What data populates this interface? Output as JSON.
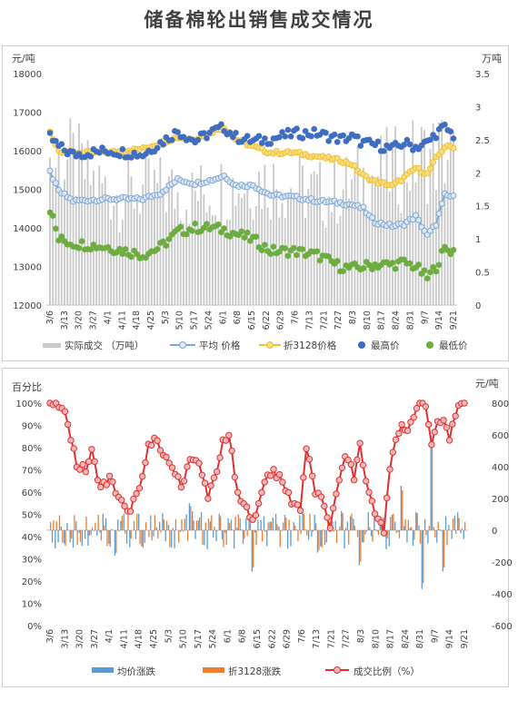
{
  "title": "储备棉轮出销售成交情况",
  "colors": {
    "volume": "#c8c8c8",
    "avg": "#7fa7d4",
    "avg_marker": "#dce8f4",
    "p3128": "#f2c230",
    "p3128_marker": "#f7dd82",
    "high": "#3f6dc2",
    "low": "#6cae3e",
    "avg_change": "#5b9bd5",
    "p3128_change": "#ed7d31",
    "ratio": "#e03030",
    "ratio_marker": "#f4b8b8"
  },
  "chart_data": [
    {
      "type": "bar+line",
      "y_left_label": "元/吨",
      "y_right_label": "万吨",
      "y_left_ticks": [
        "18000",
        "17000",
        "16000",
        "15000",
        "14000",
        "13000",
        "12000"
      ],
      "y_right_ticks": [
        "3.5",
        "3",
        "2.5",
        "2",
        "1.5",
        "1",
        "0.5",
        "0"
      ],
      "ylim_left": [
        12000,
        18000
      ],
      "ylim_right": [
        0,
        3.5
      ],
      "x_tick_labels": [
        "3/6",
        "3/13",
        "3/20",
        "3/27",
        "4/1",
        "4/11",
        "4/18",
        "4/25",
        "5/3",
        "5/10",
        "5/17",
        "5/24",
        "6/1",
        "6/8",
        "6/15",
        "6/22",
        "6/29",
        "7/6",
        "7/13",
        "7/21",
        "7/27",
        "8/3",
        "8/10",
        "8/17",
        "8/24",
        "8/31",
        "9/7",
        "9/14",
        "9/21"
      ],
      "n_days": 140,
      "legend": [
        "实际成交 （万吨）",
        "平均 价格",
        "折3128价格",
        "最高价",
        "最低价"
      ],
      "series": [
        {
          "name": "实际成交 （万吨）",
          "kind": "bar",
          "axis": "right",
          "knots": [
            [
              0,
              2.6
            ],
            [
              8,
              2.6
            ],
            [
              16,
              2.2
            ],
            [
              24,
              2.0
            ],
            [
              32,
              2.1
            ],
            [
              40,
              2.1
            ],
            [
              48,
              2.0
            ],
            [
              56,
              2.1
            ],
            [
              64,
              2.2
            ],
            [
              72,
              2.3
            ],
            [
              80,
              2.2
            ],
            [
              88,
              2.1
            ],
            [
              96,
              2.0
            ],
            [
              104,
              2.2
            ],
            [
              112,
              2.4
            ],
            [
              120,
              2.5
            ],
            [
              128,
              2.7
            ],
            [
              136,
              2.8
            ],
            [
              139,
              2.7
            ]
          ]
        },
        {
          "name": "平均 价格",
          "kind": "line",
          "axis": "left",
          "knots": [
            [
              0,
              15450
            ],
            [
              3,
              14950
            ],
            [
              8,
              14700
            ],
            [
              20,
              14750
            ],
            [
              32,
              14750
            ],
            [
              38,
              14900
            ],
            [
              44,
              15250
            ],
            [
              50,
              15150
            ],
            [
              56,
              15250
            ],
            [
              60,
              15350
            ],
            [
              64,
              15100
            ],
            [
              70,
              15100
            ],
            [
              76,
              14850
            ],
            [
              84,
              14800
            ],
            [
              92,
              14700
            ],
            [
              100,
              14650
            ],
            [
              104,
              14600
            ],
            [
              108,
              14500
            ],
            [
              110,
              14300
            ],
            [
              112,
              14150
            ],
            [
              118,
              14050
            ],
            [
              122,
              14100
            ],
            [
              126,
              14300
            ],
            [
              130,
              13800
            ],
            [
              133,
              14100
            ],
            [
              136,
              14850
            ],
            [
              139,
              14800
            ]
          ]
        },
        {
          "name": "折3128价格",
          "kind": "line",
          "axis": "left",
          "knots": [
            [
              0,
              16500
            ],
            [
              3,
              16000
            ],
            [
              8,
              15950
            ],
            [
              20,
              15950
            ],
            [
              32,
              16050
            ],
            [
              38,
              16200
            ],
            [
              44,
              16350
            ],
            [
              50,
              16300
            ],
            [
              56,
              16500
            ],
            [
              60,
              16600
            ],
            [
              64,
              16300
            ],
            [
              70,
              16100
            ],
            [
              76,
              15950
            ],
            [
              84,
              15950
            ],
            [
              92,
              15850
            ],
            [
              100,
              15750
            ],
            [
              104,
              15650
            ],
            [
              108,
              15350
            ],
            [
              112,
              15200
            ],
            [
              118,
              15100
            ],
            [
              122,
              15300
            ],
            [
              126,
              15550
            ],
            [
              130,
              15400
            ],
            [
              133,
              15800
            ],
            [
              136,
              16100
            ],
            [
              139,
              16100
            ]
          ]
        },
        {
          "name": "最高价",
          "kind": "scatter",
          "axis": "left",
          "knots": [
            [
              0,
              16350
            ],
            [
              3,
              16100
            ],
            [
              8,
              15900
            ],
            [
              20,
              16000
            ],
            [
              32,
              15900
            ],
            [
              38,
              16200
            ],
            [
              44,
              16500
            ],
            [
              50,
              16250
            ],
            [
              56,
              16500
            ],
            [
              60,
              16600
            ],
            [
              64,
              16350
            ],
            [
              70,
              16250
            ],
            [
              76,
              16300
            ],
            [
              84,
              16450
            ],
            [
              92,
              16450
            ],
            [
              100,
              16300
            ],
            [
              104,
              16350
            ],
            [
              108,
              16200
            ],
            [
              112,
              16150
            ],
            [
              118,
              16050
            ],
            [
              122,
              16200
            ],
            [
              126,
              16100
            ],
            [
              130,
              16200
            ],
            [
              133,
              16450
            ],
            [
              136,
              16600
            ],
            [
              139,
              16400
            ]
          ]
        },
        {
          "name": "最低价",
          "kind": "scatter",
          "axis": "left",
          "knots": [
            [
              0,
              14500
            ],
            [
              3,
              13700
            ],
            [
              8,
              13600
            ],
            [
              20,
              13500
            ],
            [
              32,
              13300
            ],
            [
              38,
              13500
            ],
            [
              44,
              13900
            ],
            [
              50,
              14000
            ],
            [
              56,
              14000
            ],
            [
              60,
              13950
            ],
            [
              64,
              13850
            ],
            [
              70,
              13700
            ],
            [
              76,
              13400
            ],
            [
              84,
              13400
            ],
            [
              92,
              13300
            ],
            [
              100,
              13000
            ],
            [
              104,
              12950
            ],
            [
              108,
              13000
            ],
            [
              112,
              13050
            ],
            [
              118,
              13050
            ],
            [
              122,
              13100
            ],
            [
              126,
              13000
            ],
            [
              130,
              12700
            ],
            [
              133,
              13000
            ],
            [
              136,
              13450
            ],
            [
              139,
              13400
            ]
          ]
        }
      ]
    },
    {
      "type": "bar+line",
      "y_left_label": "百分比",
      "y_right_label": "元/吨",
      "y_left_ticks": [
        "100%",
        "90%",
        "80%",
        "70%",
        "60%",
        "50%",
        "40%",
        "30%",
        "20%",
        "10%",
        "0%"
      ],
      "y_right_ticks": [
        "800",
        "600",
        "400",
        "200",
        "0",
        "-200",
        "-400",
        "-600"
      ],
      "ylim_left": [
        0,
        100
      ],
      "ylim_right": [
        -600,
        800
      ],
      "x_tick_labels": [
        "3/6",
        "3/13",
        "3/20",
        "3/27",
        "4/1",
        "4/11",
        "4/18",
        "4/25",
        "5/3",
        "5/10",
        "5/17",
        "5/24",
        "6/1",
        "6/8",
        "6/15",
        "6/22",
        "6/29",
        "7/6",
        "7/13",
        "7/21",
        "7/27",
        "8/3",
        "8/10",
        "8/17",
        "8/24",
        "8/31",
        "9/7",
        "9/14",
        "9/21"
      ],
      "n_days": 140,
      "legend": [
        "均价涨跌",
        "折3128涨跌",
        "成交比例（%）"
      ],
      "series": [
        {
          "name": "均价涨跌",
          "kind": "bar",
          "axis": "right",
          "amp": 120
        },
        {
          "name": "折3128涨跌",
          "kind": "bar",
          "axis": "right",
          "amp": 110
        },
        {
          "name": "成交比例（%）",
          "kind": "line",
          "axis": "left",
          "knots": [
            [
              0,
              100
            ],
            [
              3,
              99
            ],
            [
              6,
              92
            ],
            [
              9,
              72
            ],
            [
              12,
              70
            ],
            [
              14,
              78
            ],
            [
              17,
              62
            ],
            [
              20,
              66
            ],
            [
              23,
              58
            ],
            [
              26,
              50
            ],
            [
              28,
              56
            ],
            [
              30,
              60
            ],
            [
              33,
              80
            ],
            [
              35,
              86
            ],
            [
              38,
              75
            ],
            [
              41,
              72
            ],
            [
              44,
              62
            ],
            [
              47,
              76
            ],
            [
              50,
              72
            ],
            [
              53,
              59
            ],
            [
              56,
              68
            ],
            [
              58,
              83
            ],
            [
              60,
              86
            ],
            [
              63,
              58
            ],
            [
              66,
              52
            ],
            [
              69,
              48
            ],
            [
              72,
              66
            ],
            [
              75,
              70
            ],
            [
              78,
              64
            ],
            [
              81,
              56
            ],
            [
              84,
              53
            ],
            [
              86,
              80
            ],
            [
              89,
              60
            ],
            [
              92,
              54
            ],
            [
              94,
              45
            ],
            [
              96,
              58
            ],
            [
              98,
              72
            ],
            [
              100,
              76
            ],
            [
              102,
              66
            ],
            [
              104,
              82
            ],
            [
              106,
              64
            ],
            [
              108,
              56
            ],
            [
              110,
              48
            ],
            [
              112,
              42
            ],
            [
              114,
              70
            ],
            [
              116,
              84
            ],
            [
              118,
              90
            ],
            [
              120,
              88
            ],
            [
              122,
              94
            ],
            [
              124,
              100
            ],
            [
              126,
              100
            ],
            [
              128,
              82
            ],
            [
              130,
              90
            ],
            [
              132,
              92
            ],
            [
              134,
              84
            ],
            [
              136,
              96
            ],
            [
              139,
              99
            ]
          ]
        }
      ]
    }
  ]
}
